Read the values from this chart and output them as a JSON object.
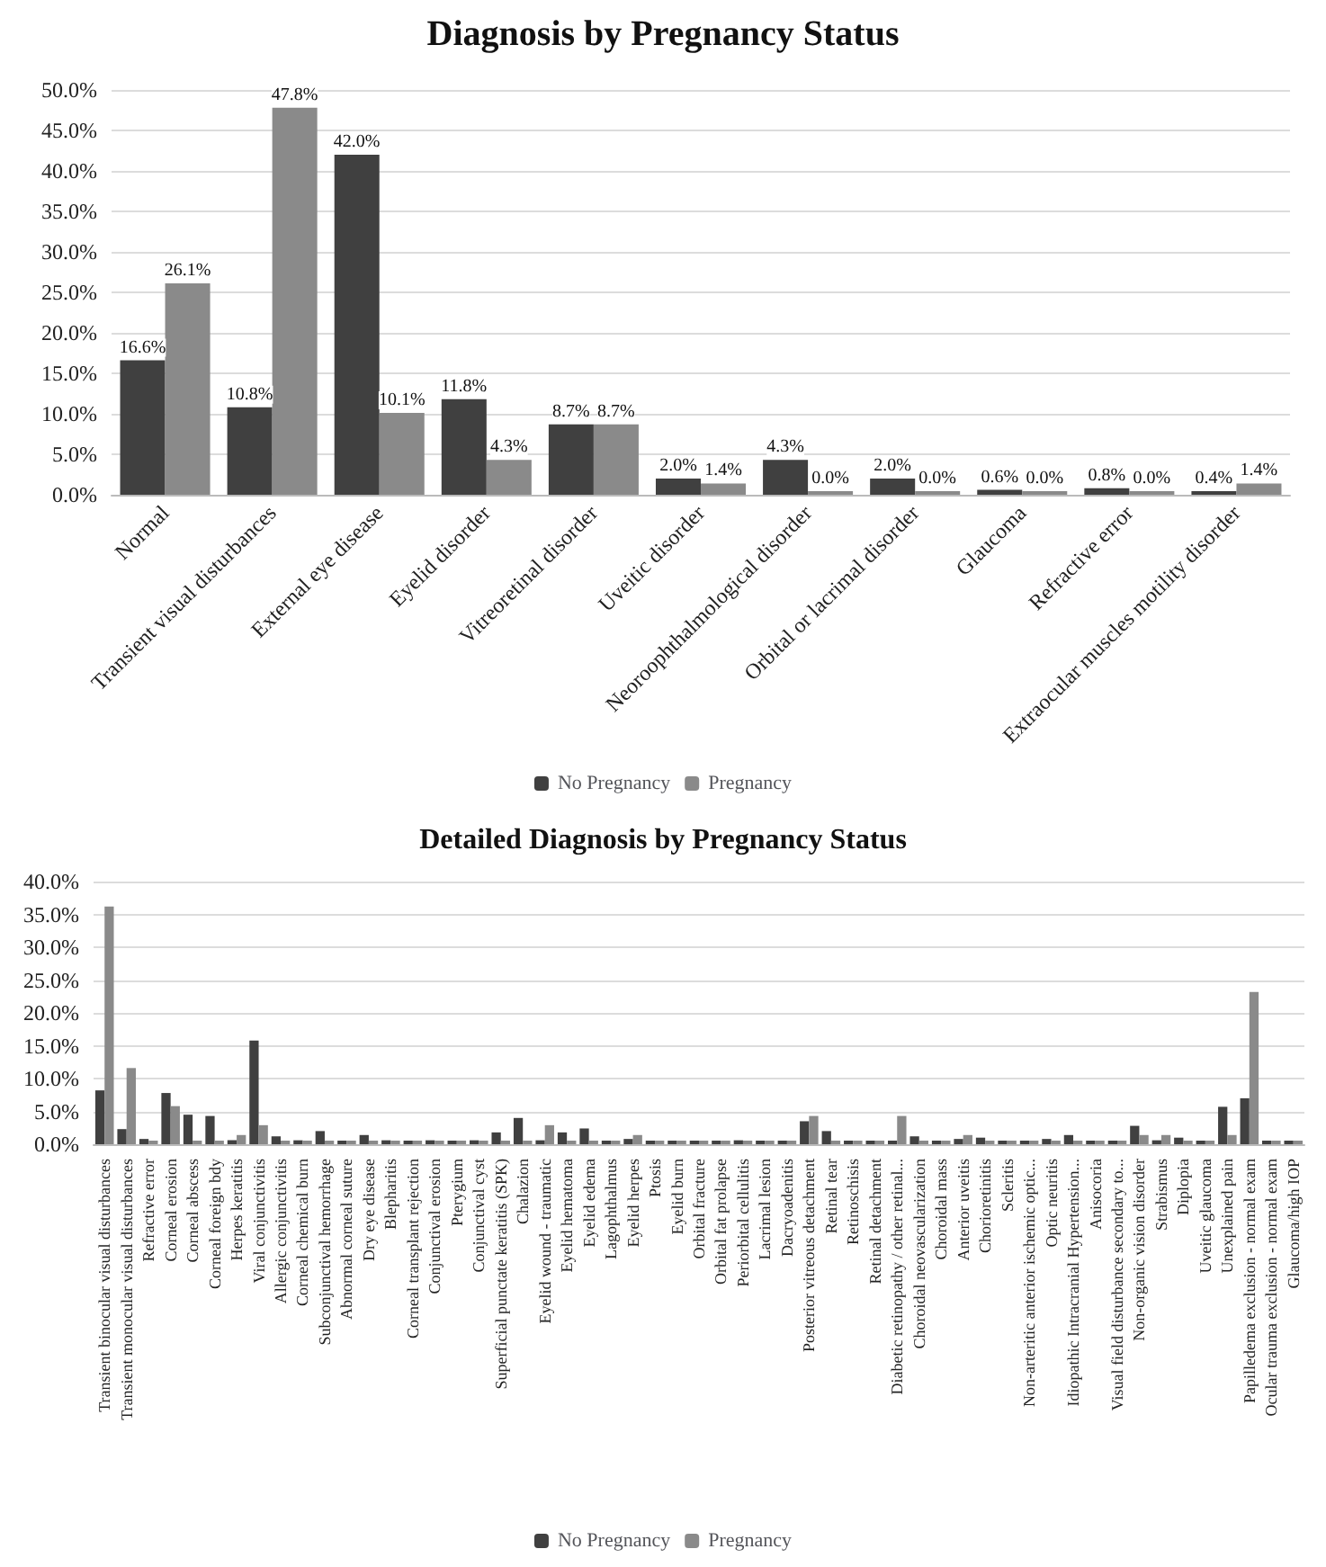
{
  "chart_data": [
    {
      "type": "bar",
      "title": "Diagnosis by Pregnancy Status",
      "categories": [
        "Normal",
        "Transient visual disturbances",
        "External eye disease",
        "Eyelid disorder",
        "Vitreoretinal disorder",
        "Uveitic disorder",
        "Neoroophthalmological disorder",
        "Orbital or lacrimal disorder",
        "Glaucoma",
        "Refractive error",
        "Extraocular muscles motility disorder"
      ],
      "series": [
        {
          "name": "No Pregnancy",
          "color": "#404040",
          "values": [
            16.6,
            10.8,
            42.0,
            11.8,
            8.7,
            2.0,
            4.3,
            2.0,
            0.6,
            0.8,
            0.4
          ],
          "value_labels": [
            "16.6%",
            "10.8%",
            "42.0%",
            "11.8%",
            "8.7%",
            "2.0%",
            "4.3%",
            "2.0%",
            "0.6%",
            "0.8%",
            "0.4%"
          ]
        },
        {
          "name": "Pregnancy",
          "color": "#8a8a8a",
          "values": [
            26.1,
            47.8,
            10.1,
            4.3,
            8.7,
            1.4,
            0.0,
            0.0,
            0.0,
            0.0,
            1.4
          ],
          "value_labels": [
            "26.1%",
            "47.8%",
            "10.1%",
            "4.3%",
            "8.7%",
            "1.4%",
            "0.0%",
            "0.0%",
            "0.0%",
            "0.0%",
            "1.4%"
          ]
        }
      ],
      "ylim": [
        0,
        50
      ],
      "yticks": [
        {
          "value": 0,
          "label": "0.0%"
        },
        {
          "value": 5,
          "label": "5.0%"
        },
        {
          "value": 10,
          "label": "10.0%"
        },
        {
          "value": 15,
          "label": "15.0%"
        },
        {
          "value": 20,
          "label": "20.0%"
        },
        {
          "value": 25,
          "label": "25.0%"
        },
        {
          "value": 30,
          "label": "30.0%"
        },
        {
          "value": 35,
          "label": "35.0%"
        },
        {
          "value": 40,
          "label": "40.0%"
        },
        {
          "value": 45,
          "label": "45.0%"
        },
        {
          "value": 50,
          "label": "50.0%"
        }
      ],
      "grid": "y",
      "legend": "bottom"
    },
    {
      "type": "bar",
      "title": "Detailed Diagnosis by Pregnancy Status",
      "categories": [
        "Transient binocular visual disturbances",
        "Transient monocular visual disturbances",
        "Refractive error",
        "Corneal erosion",
        "Corneal abscess",
        "Corneal foreign bdy",
        "Herpes keratitis",
        "Viral conjunctivitis",
        "Allergic conjunctivitis",
        "Corneal chemical burn",
        "Subconjunctival hemorrhage",
        "Abnormal corneal suture",
        "Dry eye disease",
        "Blepharitis",
        "Corneal transplant rejection",
        "Conjunctival erosion",
        "Pterygium",
        "Conjunctival cyst",
        "Superficial punctate keratitis (SPK)",
        "Chalazion",
        "Eyelid wound - traumatic",
        "Eyelid hematoma",
        "Eyelid edema",
        "Lagophthalmus",
        "Eyelid herpes",
        "Ptosis",
        "Eyelid burn",
        "Orbital fracture",
        "Orbital fat prolapse",
        "Periorbital cellulitis",
        "Lacrimal lesion",
        "Dacryoadenitis",
        "Posterior vitreous detachment",
        "Retinal tear",
        "Retinoschisis",
        "Retinal detachment",
        "Diabetic retinopathy / other retinal...",
        "Choroidal neovascularization",
        "Choroidal mass",
        "Anterior uveitis",
        "Chorioretinitis",
        "Scleritis",
        "Non-arteritic anterior ischemic optic...",
        "Optic neuritis",
        "Idiopathic Intracranial Hypertension...",
        "Anisocoria",
        "Visual field disturbance secondary to...",
        "Non-organic vision disorder",
        "Strabismus",
        "Diplopia",
        "Uveitic glaucoma",
        "Unexplained pain",
        "Papilledema exclusion - normal exam",
        "Ocular trauma exclusion - normal exam",
        "Glaucoma/high IOP"
      ],
      "series": [
        {
          "name": "No Pregnancy",
          "color": "#404040",
          "values": [
            8.2,
            2.3,
            0.8,
            7.8,
            4.5,
            4.3,
            0.6,
            15.8,
            1.2,
            0.6,
            2.0,
            0.4,
            1.4,
            0.6,
            0.2,
            0.6,
            0.2,
            0.6,
            1.8,
            4.0,
            0.6,
            1.8,
            2.4,
            0.4,
            0.8,
            0.4,
            0.4,
            0.4,
            0.2,
            0.6,
            0.2,
            0.2,
            3.5,
            2.0,
            0.4,
            0.4,
            0.4,
            1.2,
            0.2,
            0.8,
            1.0,
            0.2,
            0.2,
            0.8,
            1.4,
            0.4,
            0.2,
            2.8,
            0.6,
            1.0,
            0.2,
            5.7,
            7.0,
            0.4,
            0.4
          ]
        },
        {
          "name": "Pregnancy",
          "color": "#8a8a8a",
          "values": [
            36.2,
            11.6,
            0,
            5.8,
            0,
            0,
            1.4,
            2.9,
            0,
            0,
            0,
            0,
            0,
            0,
            0,
            0,
            0,
            0,
            0,
            0,
            2.9,
            0,
            0,
            0,
            1.4,
            0,
            0,
            0,
            0,
            0,
            0,
            0,
            4.3,
            0,
            0,
            0,
            4.3,
            0,
            0,
            1.4,
            0,
            0,
            0,
            0,
            0,
            0,
            0,
            1.4,
            1.4,
            0,
            0,
            1.4,
            23.2,
            0,
            0
          ]
        }
      ],
      "ylim": [
        0,
        40
      ],
      "yticks": [
        {
          "value": 0,
          "label": "0.0%"
        },
        {
          "value": 5,
          "label": "5.0%"
        },
        {
          "value": 10,
          "label": "10.0%"
        },
        {
          "value": 15,
          "label": "15.0%"
        },
        {
          "value": 20,
          "label": "20.0%"
        },
        {
          "value": 25,
          "label": "25.0%"
        },
        {
          "value": 30,
          "label": "30.0%"
        },
        {
          "value": 35,
          "label": "35.0%"
        },
        {
          "value": 40,
          "label": "40.0%"
        }
      ],
      "grid": "y",
      "legend": "bottom"
    }
  ]
}
